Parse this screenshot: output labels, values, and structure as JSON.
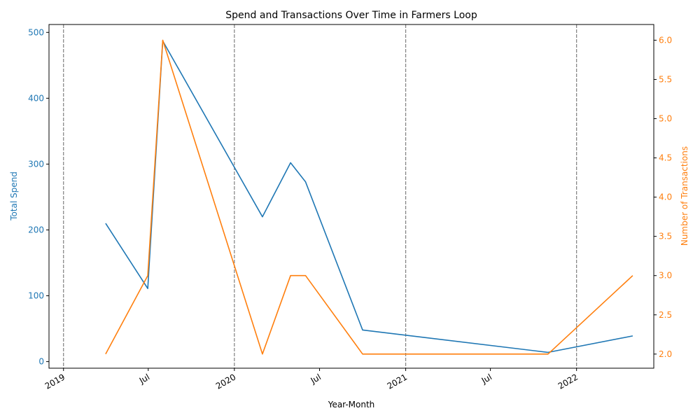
{
  "chart_data": {
    "type": "line",
    "title": "Spend and Transactions Over Time in Farmers Loop",
    "xlabel": "Year-Month",
    "ylabel_left": "Total Spend",
    "ylabel_right": "Number of Transactions",
    "x_ticks": [
      {
        "date": "2019-01-01",
        "label": "2019"
      },
      {
        "date": "2019-07-01",
        "label": "Jul"
      },
      {
        "date": "2020-01-01",
        "label": "2020"
      },
      {
        "date": "2020-07-01",
        "label": "Jul"
      },
      {
        "date": "2021-01-01",
        "label": "2021"
      },
      {
        "date": "2021-07-01",
        "label": "Jul"
      },
      {
        "date": "2022-01-01",
        "label": "2022"
      }
    ],
    "year_lines": [
      "2019-01-01",
      "2020-01-01",
      "2021-01-01",
      "2022-01-01"
    ],
    "xlim": [
      "2018-12-01",
      "2022-06-15"
    ],
    "ylim_left": [
      -10,
      512
    ],
    "ylim_right": [
      1.82,
      6.2
    ],
    "yticks_left": [
      0,
      100,
      200,
      300,
      400,
      500
    ],
    "yticks_right": [
      2.0,
      2.5,
      3.0,
      3.5,
      4.0,
      4.5,
      5.0,
      5.5,
      6.0
    ],
    "colors": {
      "spend": "#1f77b4",
      "transactions": "#ff7f0e",
      "year_line": "#808080"
    },
    "series": [
      {
        "name": "Total Spend",
        "axis": "left",
        "x": [
          "2019-04-01",
          "2019-06-30",
          "2019-08-01",
          "2020-03-01",
          "2020-04-30",
          "2020-06-01",
          "2020-10-01",
          "2021-11-01",
          "2022-05-01"
        ],
        "values": [
          210,
          111,
          487,
          220,
          302,
          273,
          48,
          14,
          39
        ]
      },
      {
        "name": "Number of Transactions",
        "axis": "right",
        "x": [
          "2019-04-01",
          "2019-06-30",
          "2019-08-01",
          "2020-03-01",
          "2020-04-30",
          "2020-06-01",
          "2020-10-01",
          "2021-11-01",
          "2022-05-01"
        ],
        "values": [
          2,
          3,
          6,
          2,
          3,
          3,
          2,
          2,
          3
        ]
      }
    ]
  }
}
